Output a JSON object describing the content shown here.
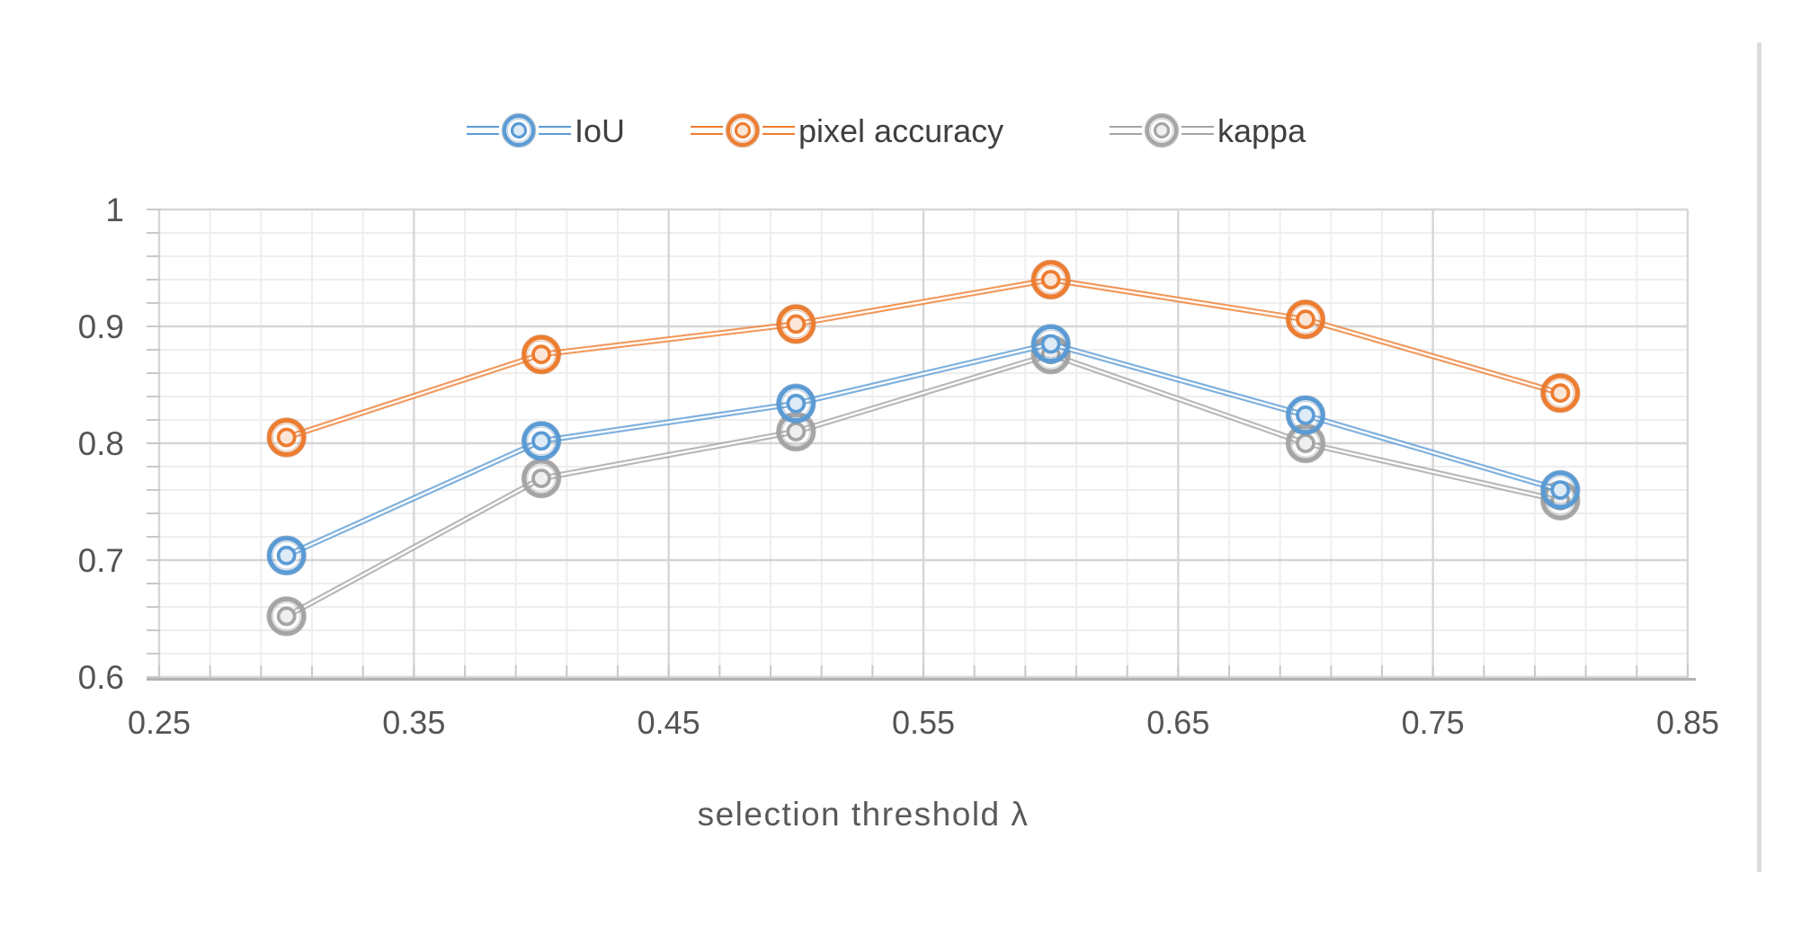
{
  "chart_data": {
    "type": "line",
    "title": "",
    "xlabel": "selection threshold λ",
    "ylabel": "",
    "x": [
      0.3,
      0.4,
      0.5,
      0.6,
      0.7,
      0.8
    ],
    "series": [
      {
        "name": "IoU",
        "color": "#5B9BD5",
        "dark": "#41719C",
        "light": "#DDEBF7",
        "values": [
          0.704,
          0.802,
          0.834,
          0.885,
          0.824,
          0.76
        ]
      },
      {
        "name": "pixel accuracy",
        "color": "#ED7D31",
        "dark": "#AE5A21",
        "light": "#FBE5D6",
        "values": [
          0.805,
          0.876,
          0.902,
          0.94,
          0.906,
          0.843
        ]
      },
      {
        "name": "kappa",
        "color": "#A5A5A5",
        "dark": "#757575",
        "light": "#EFEFEF",
        "values": [
          0.652,
          0.77,
          0.81,
          0.876,
          0.8,
          0.751
        ]
      }
    ],
    "xlim": [
      0.25,
      0.85
    ],
    "ylim": [
      0.6,
      1.0
    ],
    "x_ticks": [
      "0.25",
      "0.35",
      "0.45",
      "0.55",
      "0.65",
      "0.75",
      "0.85"
    ],
    "x_tick_values": [
      0.25,
      0.35,
      0.45,
      0.55,
      0.65,
      0.75,
      0.85
    ],
    "y_ticks": [
      "1",
      "0.9",
      "0.8",
      "0.7",
      "0.6"
    ],
    "y_tick_values": [
      1.0,
      0.9,
      0.8,
      0.7,
      0.6
    ],
    "minor_step_x": 0.02,
    "minor_step_y": 0.02,
    "grid": true,
    "legend_position": "top",
    "legend": [
      "IoU",
      "pixel accuracy",
      "kappa"
    ]
  },
  "style_colors": {
    "minor_grid": "#eeeeee",
    "major_grid": "#d6d6d6",
    "tick_mark": "#c9c9c9",
    "axis_line": "#b3b3b3",
    "tick_label": "#545454",
    "legend_label": "#3f3f3f",
    "axis_title": "#595959",
    "divider": "#dcdcdc"
  }
}
